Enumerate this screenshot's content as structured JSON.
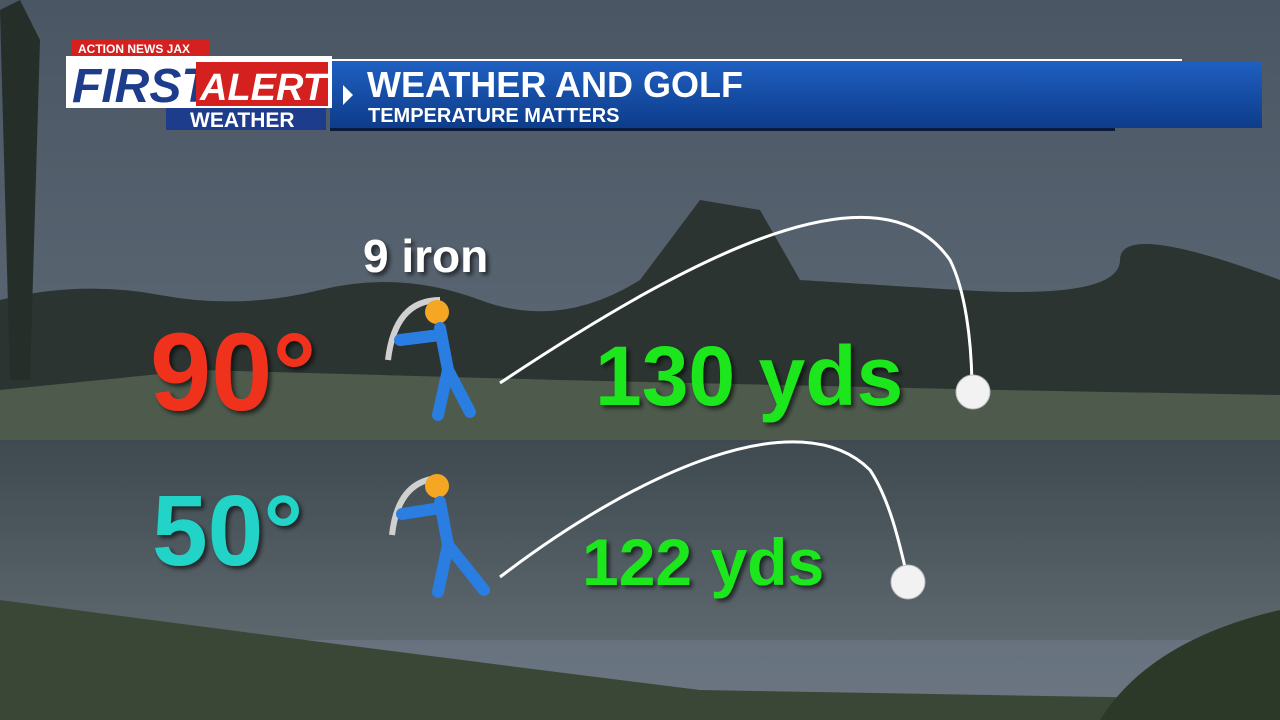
{
  "logo": {
    "station": "ACTION NEWS JAX",
    "first": "FIRST",
    "alert": "ALERT",
    "weather": "WEATHER"
  },
  "header": {
    "title": "WEATHER AND GOLF",
    "subtitle": "TEMPERATURE MATTERS"
  },
  "club": "9 iron",
  "rows": [
    {
      "temperature": "90°",
      "distance": "130 yds"
    },
    {
      "temperature": "50°",
      "distance": "122 yds"
    }
  ]
}
